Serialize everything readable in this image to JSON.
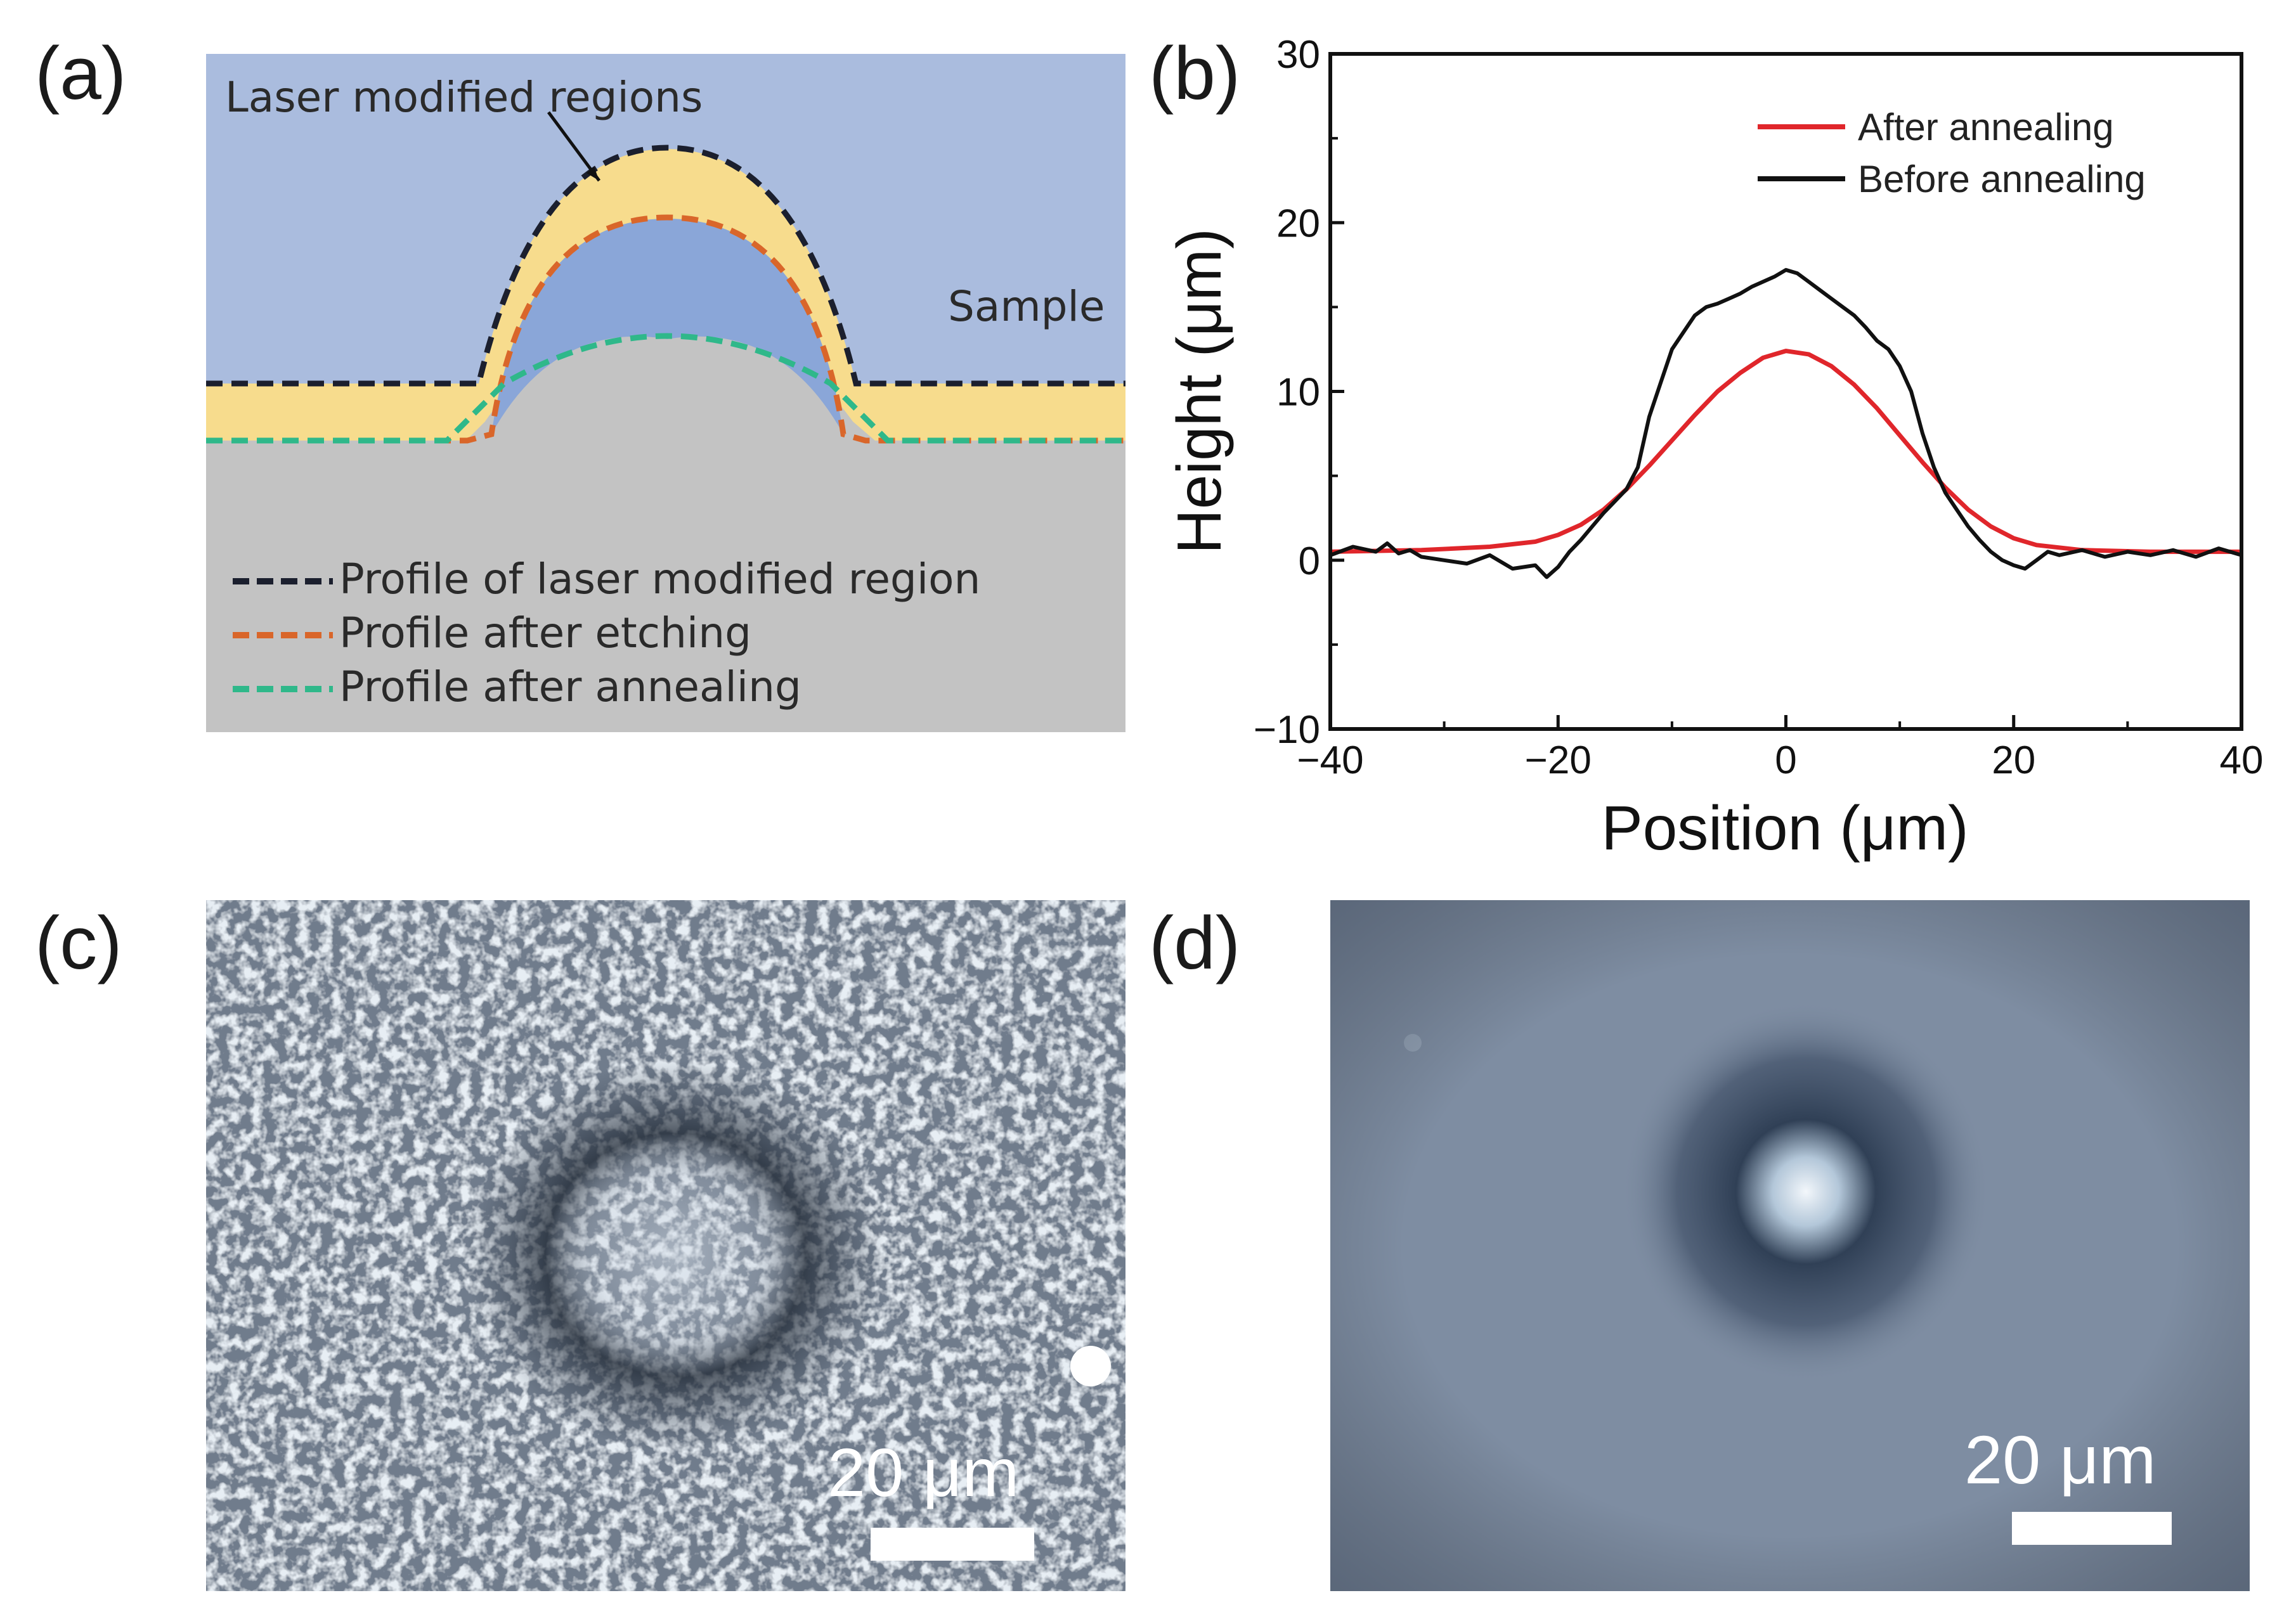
{
  "panels": {
    "a": {
      "label": "(a)",
      "callout": "Laser modified regions",
      "sample": "Sample",
      "legend": [
        {
          "text": "Profile of laser modified region",
          "color": "#1b1f2e"
        },
        {
          "text": "Profile after etching",
          "color": "#d9662a"
        },
        {
          "text": "Profile after annealing",
          "color": "#2fb88a"
        }
      ],
      "colors": {
        "background": "#aabcde",
        "modified": "#f7dc8d",
        "etched": "#8aa6d8",
        "substrate": "#c3c3c3"
      }
    },
    "b": {
      "label": "(b)"
    },
    "c": {
      "label": "(c)",
      "scale_label": "20 μm"
    },
    "d": {
      "label": "(d)",
      "scale_label": "20 μm"
    }
  },
  "chart_data": {
    "type": "line",
    "title": "",
    "xlabel": "Position (μm)",
    "ylabel": "Height (μm)",
    "xlim": [
      -40,
      40
    ],
    "ylim": [
      -10,
      30
    ],
    "xticks": [
      -40,
      -20,
      0,
      20,
      40
    ],
    "yticks": [
      -10,
      0,
      10,
      20,
      30
    ],
    "xtick_labels": [
      "−40",
      "−20",
      "0",
      "20",
      "40"
    ],
    "ytick_labels": [
      "−10",
      "0",
      "10",
      "20",
      "30"
    ],
    "grid": false,
    "legend_position": "top-right",
    "series": [
      {
        "name": "After annealing",
        "color": "#e0262b",
        "x": [
          -40,
          -32,
          -26,
          -22,
          -20,
          -18,
          -16,
          -14,
          -12,
          -10,
          -8,
          -6,
          -4,
          -2,
          0,
          2,
          4,
          6,
          8,
          10,
          12,
          14,
          16,
          18,
          20,
          22,
          26,
          32,
          40
        ],
        "y": [
          0.5,
          0.6,
          0.8,
          1.1,
          1.5,
          2.1,
          3.0,
          4.2,
          5.6,
          7.1,
          8.6,
          10.0,
          11.1,
          12.0,
          12.4,
          12.2,
          11.5,
          10.4,
          9.0,
          7.4,
          5.8,
          4.3,
          3.0,
          2.0,
          1.3,
          0.9,
          0.6,
          0.5,
          0.5
        ]
      },
      {
        "name": "Before annealing",
        "color": "#111111",
        "x": [
          -40,
          -38,
          -36,
          -35,
          -34,
          -33,
          -32,
          -30,
          -28,
          -26,
          -24,
          -22,
          -21,
          -20,
          -19,
          -18,
          -17,
          -16,
          -15,
          -14,
          -13,
          -12,
          -11,
          -10,
          -9,
          -8,
          -7,
          -6,
          -5,
          -4,
          -3,
          -2,
          -1,
          0,
          1,
          2,
          3,
          4,
          5,
          6,
          7,
          8,
          9,
          10,
          11,
          12,
          13,
          14,
          15,
          16,
          17,
          18,
          19,
          20,
          21,
          22,
          23,
          24,
          26,
          28,
          30,
          32,
          34,
          36,
          38,
          40
        ],
        "y": [
          0.3,
          0.8,
          0.5,
          1.0,
          0.4,
          0.6,
          0.2,
          0.0,
          -0.2,
          0.3,
          -0.5,
          -0.3,
          -1.0,
          -0.4,
          0.5,
          1.2,
          2.0,
          2.8,
          3.5,
          4.2,
          5.5,
          8.5,
          10.5,
          12.5,
          13.5,
          14.5,
          15.0,
          15.2,
          15.5,
          15.8,
          16.2,
          16.5,
          16.8,
          17.2,
          17.0,
          16.5,
          16.0,
          15.5,
          15.0,
          14.5,
          13.8,
          13.0,
          12.5,
          11.5,
          10.0,
          7.5,
          5.5,
          4.0,
          3.0,
          2.0,
          1.2,
          0.5,
          0.0,
          -0.3,
          -0.5,
          0.0,
          0.5,
          0.3,
          0.6,
          0.2,
          0.5,
          0.3,
          0.6,
          0.2,
          0.7,
          0.3
        ]
      }
    ]
  }
}
